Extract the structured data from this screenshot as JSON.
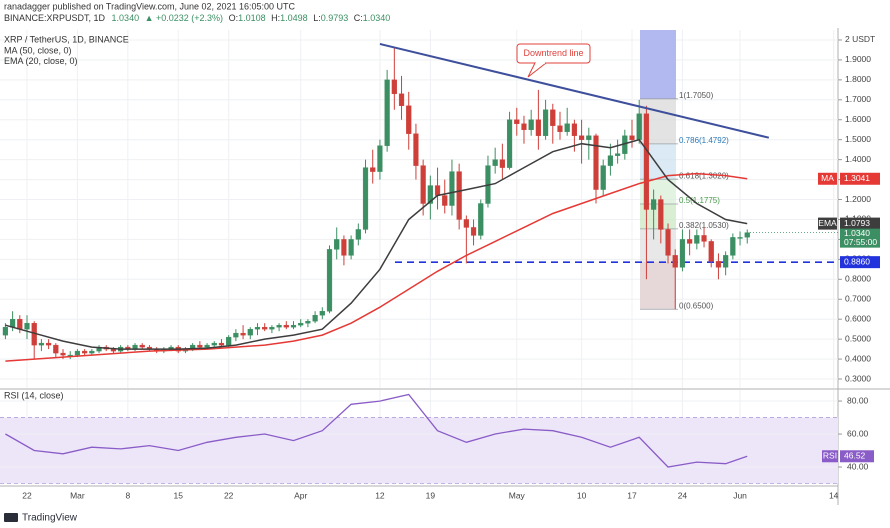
{
  "header": {
    "publisher": "ranadagger published on TradingView.com, June 02, 2021 16:05:00 UTC",
    "symbol": "BINANCE:XRPUSDT, 1D",
    "last": "1.0340",
    "change": "▲ +0.0232 (+2.3%)",
    "quote": [
      {
        "label": "O:",
        "value": "1.0108"
      },
      {
        "label": "H:",
        "value": "1.0498"
      },
      {
        "label": "L:",
        "value": "0.9793"
      },
      {
        "label": "C:",
        "value": "1.0340"
      }
    ],
    "brand": "TradingView"
  },
  "chart_data": [
    {
      "type": "candlestick",
      "title": "XRP / TetherUS, 1D, BINANCE",
      "up_color": "#3b8f62",
      "down_color": "#cf3f3a",
      "grid": true,
      "xlim": [
        -3.75,
        112.6
      ],
      "xticks": [
        {
          "value": 0,
          "label": "22"
        },
        {
          "value": 7,
          "label": "Mar"
        },
        {
          "value": 14,
          "label": "8"
        },
        {
          "value": 21,
          "label": "15"
        },
        {
          "value": 28,
          "label": "22"
        },
        {
          "value": 38,
          "label": "Apr"
        },
        {
          "value": 49,
          "label": "12"
        },
        {
          "value": 56,
          "label": "19"
        },
        {
          "value": 68,
          "label": "May"
        },
        {
          "value": 77,
          "label": "10"
        },
        {
          "value": 84,
          "label": "17"
        },
        {
          "value": 91,
          "label": "24"
        },
        {
          "value": 99,
          "label": "Jun"
        },
        {
          "value": 112,
          "label": "14"
        }
      ],
      "ylim": [
        0.255,
        2.05
      ],
      "yticks": [
        {
          "value": 0.3,
          "label": "0.3000"
        },
        {
          "value": 0.4,
          "label": "0.4000"
        },
        {
          "value": 0.5,
          "label": "0.5000"
        },
        {
          "value": 0.6,
          "label": "0.6000"
        },
        {
          "value": 0.7,
          "label": "0.7000"
        },
        {
          "value": 0.8,
          "label": "0.8000"
        },
        {
          "value": 0.9,
          "label": "0.9000"
        },
        {
          "value": 1.0,
          "label": "1.0000"
        },
        {
          "value": 1.1,
          "label": "1.1000"
        },
        {
          "value": 1.2,
          "label": "1.2000"
        },
        {
          "value": 1.3,
          "label": "1.3000"
        },
        {
          "value": 1.4,
          "label": "1.4000"
        },
        {
          "value": 1.5,
          "label": "1.5000"
        },
        {
          "value": 1.6,
          "label": "1.6000"
        },
        {
          "value": 1.7,
          "label": "1.7000"
        },
        {
          "value": 1.8,
          "label": "1.8000"
        },
        {
          "value": 1.9,
          "label": "1.9000"
        },
        {
          "value": 2.0,
          "label": "2 USDT"
        }
      ],
      "x": [
        -3,
        -2,
        -1,
        0,
        1,
        2,
        3,
        4,
        5,
        6,
        7,
        8,
        9,
        10,
        11,
        12,
        13,
        14,
        15,
        16,
        17,
        18,
        19,
        20,
        21,
        22,
        23,
        24,
        25,
        26,
        27,
        28,
        29,
        30,
        31,
        32,
        33,
        34,
        35,
        36,
        37,
        38,
        39,
        40,
        41,
        42,
        43,
        44,
        45,
        46,
        47,
        48,
        49,
        50,
        51,
        52,
        53,
        54,
        55,
        56,
        57,
        58,
        59,
        60,
        61,
        62,
        63,
        64,
        65,
        66,
        67,
        68,
        69,
        70,
        71,
        72,
        73,
        74,
        75,
        76,
        77,
        78,
        79,
        80,
        81,
        82,
        83,
        84,
        85,
        86,
        87,
        88,
        89,
        90,
        91,
        92,
        93,
        94,
        95,
        96,
        97,
        98,
        99,
        100
      ],
      "ohlc": [
        [
          0.52,
          0.58,
          0.5,
          0.56
        ],
        [
          0.56,
          0.64,
          0.54,
          0.6
        ],
        [
          0.6,
          0.62,
          0.53,
          0.55
        ],
        [
          0.55,
          0.62,
          0.5,
          0.58
        ],
        [
          0.58,
          0.59,
          0.4,
          0.47
        ],
        [
          0.47,
          0.5,
          0.44,
          0.48
        ],
        [
          0.48,
          0.5,
          0.45,
          0.47
        ],
        [
          0.47,
          0.48,
          0.41,
          0.43
        ],
        [
          0.43,
          0.45,
          0.4,
          0.42
        ],
        [
          0.42,
          0.44,
          0.4,
          0.42
        ],
        [
          0.42,
          0.45,
          0.41,
          0.44
        ],
        [
          0.44,
          0.45,
          0.42,
          0.43
        ],
        [
          0.43,
          0.45,
          0.42,
          0.44
        ],
        [
          0.44,
          0.47,
          0.43,
          0.46
        ],
        [
          0.46,
          0.47,
          0.44,
          0.45
        ],
        [
          0.45,
          0.46,
          0.43,
          0.44
        ],
        [
          0.44,
          0.47,
          0.43,
          0.46
        ],
        [
          0.46,
          0.47,
          0.44,
          0.45
        ],
        [
          0.45,
          0.48,
          0.44,
          0.47
        ],
        [
          0.47,
          0.48,
          0.45,
          0.46
        ],
        [
          0.46,
          0.47,
          0.44,
          0.45
        ],
        [
          0.45,
          0.46,
          0.43,
          0.44
        ],
        [
          0.44,
          0.46,
          0.43,
          0.45
        ],
        [
          0.45,
          0.47,
          0.44,
          0.46
        ],
        [
          0.46,
          0.47,
          0.43,
          0.44
        ],
        [
          0.44,
          0.46,
          0.43,
          0.45
        ],
        [
          0.45,
          0.48,
          0.44,
          0.47
        ],
        [
          0.47,
          0.49,
          0.45,
          0.46
        ],
        [
          0.46,
          0.48,
          0.45,
          0.47
        ],
        [
          0.47,
          0.49,
          0.45,
          0.48
        ],
        [
          0.48,
          0.5,
          0.46,
          0.47
        ],
        [
          0.47,
          0.52,
          0.46,
          0.51
        ],
        [
          0.51,
          0.55,
          0.49,
          0.53
        ],
        [
          0.53,
          0.57,
          0.5,
          0.52
        ],
        [
          0.52,
          0.56,
          0.5,
          0.55
        ],
        [
          0.55,
          0.58,
          0.52,
          0.56
        ],
        [
          0.56,
          0.58,
          0.54,
          0.55
        ],
        [
          0.55,
          0.57,
          0.53,
          0.56
        ],
        [
          0.56,
          0.58,
          0.54,
          0.57
        ],
        [
          0.57,
          0.59,
          0.55,
          0.56
        ],
        [
          0.56,
          0.59,
          0.55,
          0.57
        ],
        [
          0.57,
          0.6,
          0.56,
          0.58
        ],
        [
          0.58,
          0.6,
          0.56,
          0.59
        ],
        [
          0.59,
          0.64,
          0.58,
          0.62
        ],
        [
          0.62,
          0.66,
          0.6,
          0.64
        ],
        [
          0.64,
          0.97,
          0.63,
          0.95
        ],
        [
          0.95,
          1.06,
          0.9,
          1.0
        ],
        [
          1.0,
          1.02,
          0.87,
          0.92
        ],
        [
          0.92,
          1.02,
          0.9,
          1.0
        ],
        [
          1.0,
          1.08,
          0.97,
          1.05
        ],
        [
          1.05,
          1.4,
          1.03,
          1.36
        ],
        [
          1.36,
          1.45,
          1.28,
          1.34
        ],
        [
          1.34,
          1.5,
          1.3,
          1.47
        ],
        [
          1.47,
          1.85,
          1.44,
          1.8
        ],
        [
          1.8,
          1.96,
          1.65,
          1.73
        ],
        [
          1.73,
          1.82,
          1.6,
          1.67
        ],
        [
          1.67,
          1.74,
          1.45,
          1.53
        ],
        [
          1.53,
          1.58,
          1.3,
          1.37
        ],
        [
          1.37,
          1.4,
          1.12,
          1.18
        ],
        [
          1.18,
          1.32,
          1.1,
          1.27
        ],
        [
          1.27,
          1.36,
          1.15,
          1.22
        ],
        [
          1.22,
          1.3,
          1.13,
          1.17
        ],
        [
          1.17,
          1.4,
          1.12,
          1.34
        ],
        [
          1.34,
          1.38,
          1.05,
          1.1
        ],
        [
          1.1,
          1.12,
          0.88,
          1.06
        ],
        [
          1.06,
          1.1,
          0.97,
          1.02
        ],
        [
          1.02,
          1.2,
          1.0,
          1.18
        ],
        [
          1.18,
          1.42,
          1.16,
          1.37
        ],
        [
          1.37,
          1.46,
          1.33,
          1.4
        ],
        [
          1.4,
          1.48,
          1.3,
          1.36
        ],
        [
          1.36,
          1.64,
          1.35,
          1.6
        ],
        [
          1.6,
          1.66,
          1.52,
          1.58
        ],
        [
          1.58,
          1.62,
          1.48,
          1.55
        ],
        [
          1.55,
          1.65,
          1.52,
          1.6
        ],
        [
          1.6,
          1.75,
          1.45,
          1.52
        ],
        [
          1.52,
          1.7,
          1.5,
          1.65
        ],
        [
          1.65,
          1.68,
          1.48,
          1.57
        ],
        [
          1.57,
          1.64,
          1.5,
          1.54
        ],
        [
          1.54,
          1.66,
          1.52,
          1.58
        ],
        [
          1.58,
          1.6,
          1.44,
          1.52
        ],
        [
          1.52,
          1.6,
          1.38,
          1.5
        ],
        [
          1.5,
          1.56,
          1.4,
          1.52
        ],
        [
          1.52,
          1.53,
          1.18,
          1.25
        ],
        [
          1.25,
          1.4,
          1.22,
          1.37
        ],
        [
          1.37,
          1.48,
          1.32,
          1.42
        ],
        [
          1.42,
          1.5,
          1.38,
          1.43
        ],
        [
          1.43,
          1.55,
          1.4,
          1.52
        ],
        [
          1.52,
          1.6,
          1.46,
          1.5
        ],
        [
          1.5,
          1.7,
          1.48,
          1.63
        ],
        [
          1.63,
          1.67,
          0.8,
          1.15
        ],
        [
          1.15,
          1.25,
          1.0,
          1.2
        ],
        [
          1.2,
          1.22,
          0.98,
          1.05
        ],
        [
          1.05,
          1.08,
          0.88,
          0.92
        ],
        [
          0.92,
          0.95,
          0.65,
          0.86
        ],
        [
          0.86,
          1.05,
          0.84,
          1.0
        ],
        [
          1.0,
          1.05,
          0.92,
          0.98
        ],
        [
          0.98,
          1.05,
          0.95,
          1.02
        ],
        [
          1.02,
          1.06,
          0.96,
          0.99
        ],
        [
          0.99,
          1.0,
          0.86,
          0.89
        ],
        [
          0.89,
          0.93,
          0.8,
          0.86
        ],
        [
          0.86,
          0.94,
          0.82,
          0.92
        ],
        [
          0.92,
          1.03,
          0.9,
          1.01
        ],
        [
          1.01,
          1.04,
          0.97,
          1.01
        ],
        [
          1.0108,
          1.0498,
          0.9793,
          1.034
        ]
      ],
      "series": [
        {
          "name": "MA (50, close, 0)",
          "tag": "MA",
          "color": "#e53935",
          "x": [
            -3,
            1,
            5,
            9,
            13,
            17,
            21,
            25,
            29,
            33,
            37,
            41,
            45,
            49,
            53,
            57,
            61,
            65,
            69,
            73,
            77,
            81,
            85,
            89,
            93,
            97,
            100
          ],
          "values": [
            0.39,
            0.4,
            0.41,
            0.42,
            0.43,
            0.44,
            0.445,
            0.45,
            0.46,
            0.47,
            0.49,
            0.52,
            0.58,
            0.66,
            0.75,
            0.84,
            0.92,
            0.99,
            1.06,
            1.13,
            1.18,
            1.23,
            1.28,
            1.32,
            1.33,
            1.32,
            1.3041
          ]
        },
        {
          "name": "EMA (20, close, 0)",
          "tag": "EMA",
          "color": "#3d3d3d",
          "x": [
            -3,
            1,
            5,
            9,
            13,
            17,
            21,
            25,
            29,
            33,
            37,
            41,
            45,
            49,
            53,
            57,
            61,
            65,
            69,
            73,
            77,
            81,
            85,
            89,
            93,
            97,
            100
          ],
          "values": [
            0.57,
            0.53,
            0.49,
            0.46,
            0.45,
            0.45,
            0.45,
            0.455,
            0.47,
            0.5,
            0.52,
            0.55,
            0.68,
            0.85,
            1.1,
            1.22,
            1.25,
            1.28,
            1.36,
            1.44,
            1.48,
            1.46,
            1.5,
            1.3,
            1.18,
            1.1,
            1.0793
          ]
        }
      ],
      "last_price": {
        "value": 1.034,
        "label": "1.0340",
        "countdown": "07:55:00",
        "color": "#3b8f62"
      },
      "support": {
        "value": 0.886,
        "label": "0.8860",
        "color": "#2233dd"
      },
      "fib": [
        {
          "value": 1.705,
          "label": "1(1.7050)",
          "color": "#d9d9d9"
        },
        {
          "value": 1.4792,
          "label": "0.786(1.4792)",
          "color": "#cfe3f0"
        },
        {
          "value": 1.302,
          "label": "0.618(1.3020)",
          "color": "#d8efd8"
        },
        {
          "value": 1.1775,
          "label": "0.5(1.1775)",
          "color": "#cde8c4"
        },
        {
          "value": 1.053,
          "label": "0.382(1.0530)",
          "color": "#e0e0e0"
        },
        {
          "value": 0.65,
          "label": "0(0.6500)",
          "color": "#e0e0e0"
        }
      ],
      "target_color": "#aab0ee",
      "stop_color": "#f4b8b8",
      "trendline": {
        "x": [
          49,
          103
        ],
        "y": [
          1.98,
          1.51
        ],
        "color": "#3e4f9c"
      },
      "annotation": {
        "text": "Downtrend line",
        "color": "#e0413b"
      }
    },
    {
      "type": "line",
      "title": "RSI (14, close)",
      "grid": true,
      "ylim": [
        29.1,
        86.7
      ],
      "yticks": [
        {
          "value": 40,
          "label": "40.00"
        },
        {
          "value": 60,
          "label": "60.00"
        },
        {
          "value": 80,
          "label": "80.00"
        }
      ],
      "band": [
        30,
        70
      ],
      "band_color": "#ede6f8",
      "series": [
        {
          "name": "RSI",
          "color": "#8a5cc8",
          "x": [
            -3,
            1,
            5,
            9,
            13,
            17,
            21,
            25,
            29,
            33,
            37,
            41,
            45,
            49,
            53,
            57,
            61,
            65,
            69,
            73,
            77,
            81,
            85,
            89,
            93,
            97,
            100
          ],
          "values": [
            60,
            50,
            48,
            52,
            51,
            53,
            50,
            55,
            58,
            60,
            56,
            62,
            78,
            80,
            84,
            62,
            55,
            60,
            63,
            62,
            58,
            52,
            58,
            40,
            43,
            42,
            46.52
          ]
        }
      ]
    }
  ]
}
